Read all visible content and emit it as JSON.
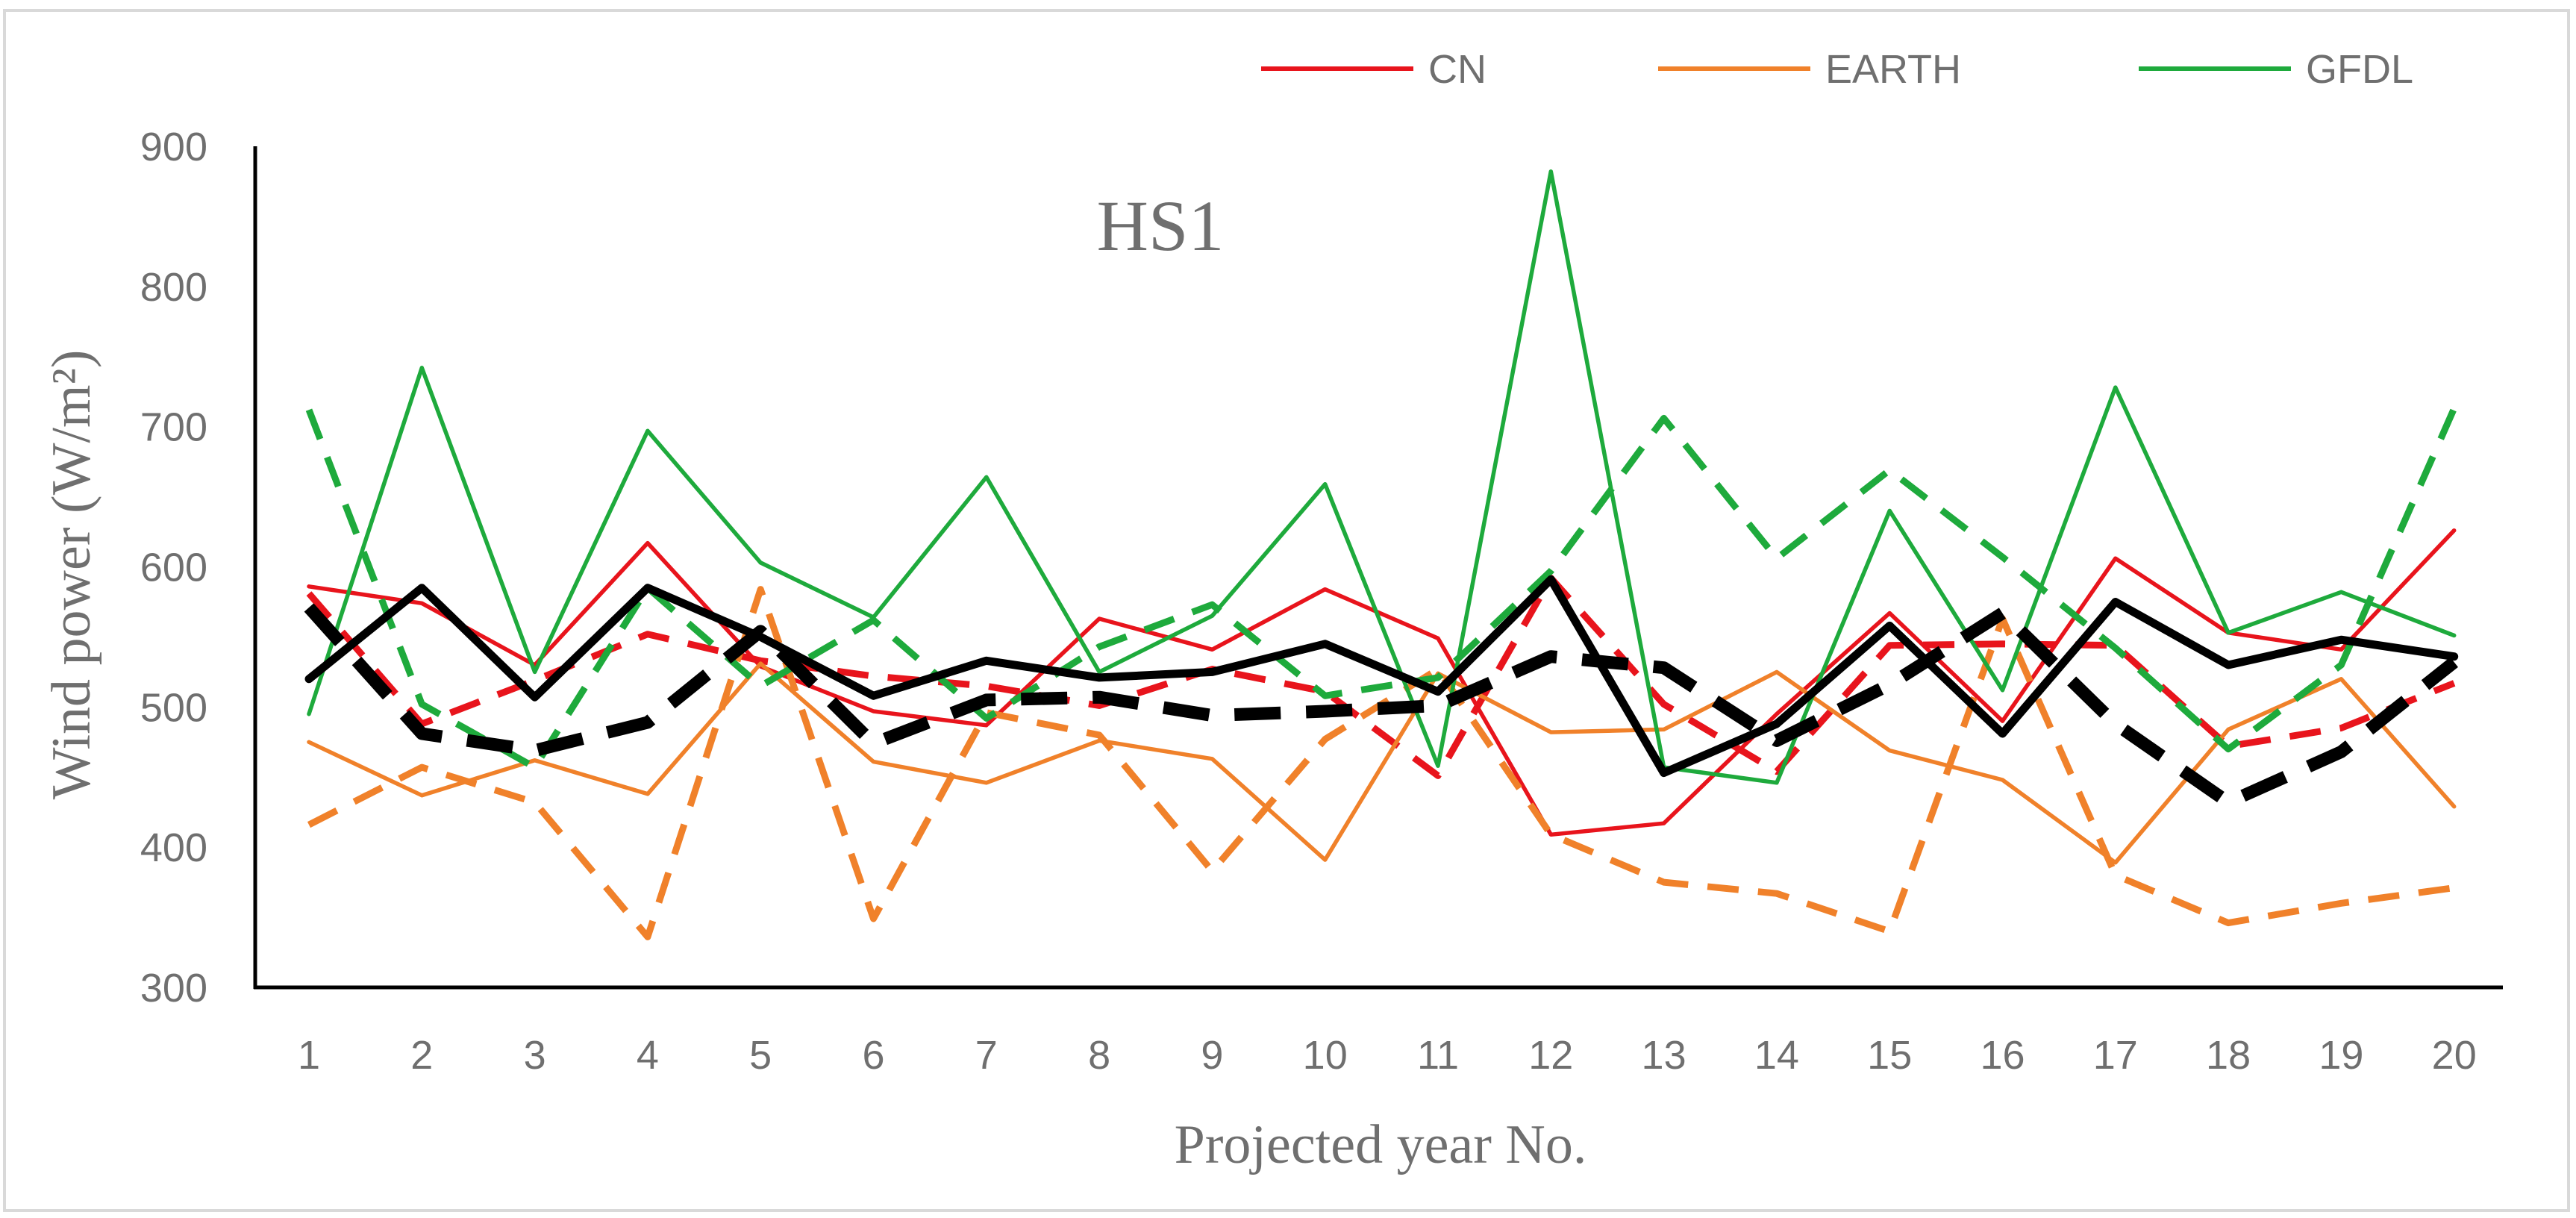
{
  "chart_data": {
    "type": "line",
    "title": "HS1",
    "xlabel": "Projected year No.",
    "ylabel": "Wind power (W/m²)",
    "ylim": [
      300,
      900
    ],
    "yticks": [
      300,
      400,
      500,
      600,
      700,
      800,
      900
    ],
    "x": [
      "1",
      "2",
      "3",
      "4",
      "5",
      "6",
      "7",
      "8",
      "9",
      "10",
      "11",
      "12",
      "13",
      "14",
      "15",
      "16",
      "17",
      "18",
      "19",
      "20"
    ],
    "legend": {
      "placement": "top-right",
      "entries": [
        "CN",
        "EARTH",
        "GFDL"
      ]
    },
    "grid": false,
    "series": [
      {
        "name": "CN",
        "color": "#e8141c",
        "style": "solid",
        "values": [
          586,
          574,
          530,
          617,
          529,
          497,
          487,
          563,
          541,
          584,
          549,
          409,
          417,
          495,
          567,
          490,
          606,
          553,
          541,
          626
        ]
      },
      {
        "name": "",
        "color": "#e8141c",
        "style": "dashed",
        "values": [
          581,
          488,
          519,
          552,
          533,
          522,
          515,
          501,
          527,
          511,
          451,
          592,
          502,
          454,
          544,
          545,
          544,
          472,
          485,
          517
        ]
      },
      {
        "name": "EARTH",
        "color": "#f0812a",
        "style": "solid",
        "values": [
          475,
          437,
          462,
          438,
          531,
          461,
          446,
          476,
          463,
          391,
          524,
          482,
          484,
          525,
          469,
          448,
          389,
          484,
          520,
          429
        ]
      },
      {
        "name": "",
        "color": "#f0812a",
        "style": "dashed",
        "values": [
          416,
          457,
          432,
          336,
          584,
          349,
          496,
          480,
          383,
          477,
          527,
          409,
          375,
          367,
          340,
          563,
          380,
          346,
          360,
          371
        ]
      },
      {
        "name": "GFDL",
        "color": "#1eaa3c",
        "style": "solid",
        "values": [
          495,
          742,
          525,
          697,
          603,
          564,
          664,
          525,
          565,
          659,
          458,
          882,
          457,
          446,
          640,
          512,
          728,
          553,
          582,
          551
        ]
      },
      {
        "name": "",
        "color": "#1eaa3c",
        "style": "dashed",
        "values": [
          712,
          502,
          457,
          585,
          515,
          562,
          492,
          543,
          573,
          508,
          521,
          597,
          706,
          606,
          669,
          607,
          542,
          470,
          530,
          713
        ]
      },
      {
        "name": "",
        "color": "#000000",
        "style": "solid",
        "values": [
          520,
          585,
          507,
          585,
          550,
          508,
          533,
          521,
          525,
          545,
          511,
          591,
          453,
          488,
          558,
          481,
          575,
          530,
          548,
          536
        ]
      },
      {
        "name": "",
        "color": "#000000",
        "style": "dashed",
        "values": [
          571,
          481,
          469,
          489,
          554,
          474,
          505,
          507,
          494,
          497,
          501,
          536,
          528,
          476,
          516,
          567,
          488,
          432,
          468,
          532
        ]
      }
    ]
  }
}
